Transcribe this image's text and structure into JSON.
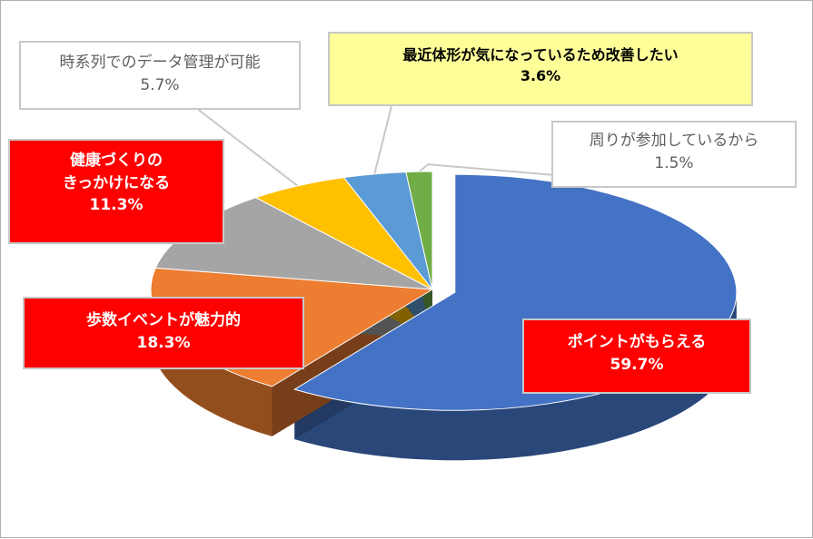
{
  "chart_data": {
    "type": "pie",
    "style": "3d-exploded",
    "slices": [
      {
        "label": "ポイントがもらえる",
        "value": 59.7,
        "value_text": "59.7%",
        "color": "#4472c4",
        "callout": "red"
      },
      {
        "label": "歩数イベントが魅力的",
        "value": 18.3,
        "value_text": "18.3%",
        "color": "#ed7d31",
        "callout": "red"
      },
      {
        "label": "健康づくりのきっかけになる",
        "lines": [
          "健康づくりの",
          "きっかけになる"
        ],
        "value": 11.3,
        "value_text": "11.3%",
        "color": "#a5a5a5",
        "callout": "red"
      },
      {
        "label": "時系列でのデータ管理が可能",
        "value": 5.7,
        "value_text": "5.7%",
        "color": "#ffc000",
        "callout": "white"
      },
      {
        "label": "最近体形が気になっているため改善したい",
        "value": 3.6,
        "value_text": "3.6%",
        "color": "#5b9bd5",
        "callout": "yellow"
      },
      {
        "label": "周りが参加しているから",
        "value": 1.5,
        "value_text": "1.5%",
        "color": "#70ad47",
        "callout": "white"
      }
    ]
  }
}
